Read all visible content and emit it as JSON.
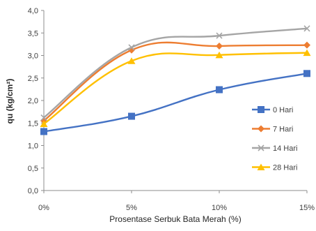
{
  "chart_data": {
    "type": "line",
    "smooth": true,
    "xlabel": "Prosentase Serbuk Bata Merah (%)",
    "ylabel": "qu (kg/cm²)",
    "categories": [
      "0%",
      "5%",
      "10%",
      "15%"
    ],
    "y_ticks": [
      "0,0",
      "0,5",
      "1,0",
      "1,5",
      "2,0",
      "2,5",
      "3,0",
      "3,5",
      "4,0"
    ],
    "ylim": [
      0,
      4
    ],
    "grid": false,
    "legend_position": "right",
    "series": [
      {
        "name": "0 Hari",
        "values": [
          1.31,
          1.65,
          2.24,
          2.6
        ],
        "color": "#4472C4",
        "marker": "square"
      },
      {
        "name": "7 Hari",
        "values": [
          1.55,
          3.12,
          3.21,
          3.23
        ],
        "color": "#ED7D31",
        "marker": "diamond"
      },
      {
        "name": "14 Hari",
        "values": [
          1.62,
          3.18,
          3.44,
          3.6
        ],
        "color": "#A5A5A5",
        "marker": "x"
      },
      {
        "name": "28 Hari",
        "values": [
          1.48,
          2.88,
          3.01,
          3.06
        ],
        "color": "#FFC000",
        "marker": "triangle"
      }
    ]
  }
}
